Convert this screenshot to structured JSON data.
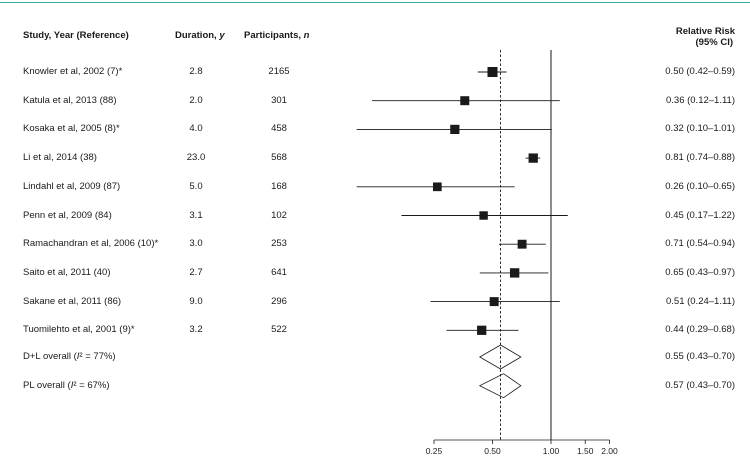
{
  "headers": {
    "study": "Study, Year (Reference)",
    "duration": "Duration, ",
    "duration_unit": "y",
    "participants": "Participants, ",
    "participants_unit": "n",
    "rr_line1": "Relative Risk",
    "rr_line2": "(95% CI)"
  },
  "chart_data": {
    "type": "forest",
    "x_scale": "log",
    "xlim": [
      0.25,
      2.0
    ],
    "x_ticks": [
      {
        "value": 0.25,
        "label": "0.25"
      },
      {
        "value": 0.5,
        "label": "0.50"
      },
      {
        "value": 1.0,
        "label": "1.00"
      },
      {
        "value": 1.5,
        "label": "1.50"
      },
      {
        "value": 2.0,
        "label": "2.00"
      }
    ],
    "reference_line": 1.0,
    "pooled_line": 0.55,
    "studies": [
      {
        "label": "Knowler et al, 2002 (7)*",
        "duration": "2.8",
        "participants": "2165",
        "rr": 0.5,
        "lo": 0.42,
        "hi": 0.59,
        "ci_text": "0.50 (0.42–0.59)"
      },
      {
        "label": "Katula et al, 2013 (88)",
        "duration": "2.0",
        "participants": "301",
        "rr": 0.36,
        "lo": 0.12,
        "hi": 1.11,
        "ci_text": "0.36 (0.12–1.11)"
      },
      {
        "label": "Kosaka et al, 2005 (8)*",
        "duration": "4.0",
        "participants": "458",
        "rr": 0.32,
        "lo": 0.1,
        "hi": 1.01,
        "ci_text": "0.32 (0.10–1.01)"
      },
      {
        "label": "Li et al, 2014 (38)",
        "duration": "23.0",
        "participants": "568",
        "rr": 0.81,
        "lo": 0.74,
        "hi": 0.88,
        "ci_text": "0.81 (0.74–0.88)"
      },
      {
        "label": "Lindahl et al, 2009 (87)",
        "duration": "5.0",
        "participants": "168",
        "rr": 0.26,
        "lo": 0.1,
        "hi": 0.65,
        "ci_text": "0.26 (0.10–0.65)"
      },
      {
        "label": "Penn et al, 2009 (84)",
        "duration": "3.1",
        "participants": "102",
        "rr": 0.45,
        "lo": 0.17,
        "hi": 1.22,
        "ci_text": "0.45 (0.17–1.22)"
      },
      {
        "label": "Ramachandran et al, 2006 (10)*",
        "duration": "3.0",
        "participants": "253",
        "rr": 0.71,
        "lo": 0.54,
        "hi": 0.94,
        "ci_text": "0.71 (0.54–0.94)"
      },
      {
        "label": "Saito et al, 2011 (40)",
        "duration": "2.7",
        "participants": "641",
        "rr": 0.65,
        "lo": 0.43,
        "hi": 0.97,
        "ci_text": "0.65 (0.43–0.97)"
      },
      {
        "label": "Sakane et al, 2011 (86)",
        "duration": "9.0",
        "participants": "296",
        "rr": 0.51,
        "lo": 0.24,
        "hi": 1.11,
        "ci_text": "0.51 (0.24–1.11)"
      },
      {
        "label": "Tuomilehto et al, 2001 (9)*",
        "duration": "3.2",
        "participants": "522",
        "rr": 0.44,
        "lo": 0.29,
        "hi": 0.68,
        "ci_text": "0.44 (0.29–0.68)"
      }
    ],
    "overall": [
      {
        "label_pre": "D+L overall (",
        "label_i": "I",
        "label_post": "² = 77%)",
        "rr": 0.55,
        "lo": 0.43,
        "hi": 0.7,
        "ci_text": "0.55 (0.43–0.70)"
      },
      {
        "label_pre": "PL overall (",
        "label_i": "I",
        "label_post": "² = 67%)",
        "rr": 0.57,
        "lo": 0.43,
        "hi": 0.7,
        "ci_text": "0.57 (0.43–0.70)"
      }
    ]
  }
}
